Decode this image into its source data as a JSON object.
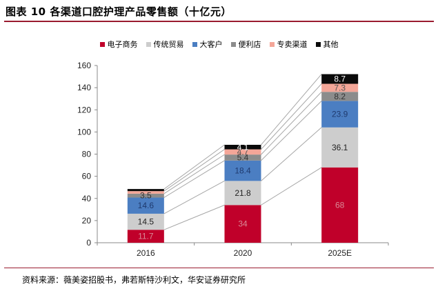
{
  "title": "图表 10 各渠道口腔护理产品零售额（十亿元）",
  "source": "资料来源：薇美姿招股书，弗若斯特沙利文，华安证券研究所",
  "chart_data": {
    "type": "bar",
    "stacked": true,
    "categories": [
      "2016",
      "2020",
      "2025E"
    ],
    "ylim": [
      0,
      160
    ],
    "yticks": [
      0,
      20,
      40,
      60,
      80,
      100,
      120,
      140,
      160
    ],
    "legend_position": "top",
    "series": [
      {
        "name": "电子商务",
        "color": "#c0002a",
        "label_color": "#d98a97",
        "values": [
          11.7,
          34,
          68
        ],
        "labels": [
          "11.7",
          "34",
          "68"
        ]
      },
      {
        "name": "传统贸易",
        "color": "#cdcdcd",
        "label_color": "#222222",
        "values": [
          14.5,
          21.8,
          36.1
        ],
        "labels": [
          "14.5",
          "21.8",
          "36.1"
        ]
      },
      {
        "name": "大客户",
        "color": "#4b7ec2",
        "label_color": "#1f3a6e",
        "values": [
          14.6,
          18.4,
          23.9
        ],
        "labels": [
          "14.6",
          "18.4",
          "23.9"
        ]
      },
      {
        "name": "便利店",
        "color": "#8c8c8c",
        "label_color": "#333333",
        "values": [
          3.5,
          5.4,
          8.2
        ],
        "labels": [
          "3.5",
          "5.4",
          "8.2"
        ]
      },
      {
        "name": "专卖渠道",
        "color": "#f4a698",
        "label_color": "#555555",
        "values": [
          2.3,
          4.7,
          7.3
        ],
        "labels": [
          "",
          "4.7",
          "7.3"
        ]
      },
      {
        "name": "其他",
        "color": "#0a0a0a",
        "label_color": "#ffffff",
        "values": [
          1.9,
          4.1,
          8.7
        ],
        "labels": [
          "",
          "4.1",
          "8.7"
        ]
      }
    ]
  }
}
